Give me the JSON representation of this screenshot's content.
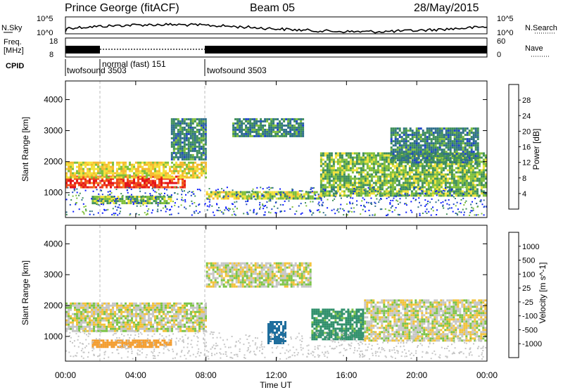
{
  "header": {
    "station": "Prince George (fitACF)",
    "beam": "Beam 05",
    "date": "28/May/2015"
  },
  "summary_panels": {
    "nsky": {
      "label": "N.Sky",
      "axis_ticks": [
        "10^5",
        "10^0"
      ]
    },
    "nsearch": {
      "label": "N.Search",
      "axis_ticks": [
        "10^5",
        "10^0"
      ]
    },
    "freq": {
      "label_lines": [
        "Freq.",
        "[MHz]"
      ],
      "ticks": [
        "18",
        "8"
      ]
    },
    "nave": {
      "label": "Nave",
      "ticks": [
        "60",
        "0"
      ]
    },
    "cpid": {
      "label": "CPID",
      "segments": [
        {
          "text": "twofsound 3503",
          "start_hour": 0.0,
          "end_hour": 1.95
        },
        {
          "text": "normal (fast) 151",
          "start_hour": 1.95,
          "end_hour": 8.0
        },
        {
          "text": "twofsound 3503",
          "start_hour": 8.0,
          "end_hour": 24.0
        }
      ]
    }
  },
  "colorbars": {
    "power": {
      "label": "Power [dB]",
      "ticks": [
        "4",
        "8",
        "12",
        "16",
        "20",
        "24",
        "28"
      ],
      "colors": [
        "#0a1aff",
        "#1f45c8",
        "#2f6f8a",
        "#3f8f5a",
        "#7fbf3a",
        "#f3e23a",
        "#f6b82e",
        "#f57f25",
        "#f04a1e",
        "#e4141a"
      ]
    },
    "velocity": {
      "label": "Velocity [m s^-1]",
      "ticks": [
        "1000",
        "500",
        "100",
        "25",
        "-25",
        "-100",
        "-500",
        "-1000"
      ],
      "colors": [
        "#1f3fb7",
        "#1f6e9d",
        "#2f8f6a",
        "#48a84f",
        "#7cc447",
        "#c6c6c6",
        "#c6c6c6",
        "#f2c23a",
        "#f39b2a",
        "#ef6a1f",
        "#e4141a"
      ]
    }
  },
  "chart_data": [
    {
      "type": "heatmap",
      "name": "power",
      "ylabel": "Slant Range [km]",
      "xlabel": "Time UT",
      "ylim": [
        200,
        4600
      ],
      "xlim_hours": [
        0,
        24
      ],
      "yticks": [
        "1000",
        "2000",
        "3000",
        "4000"
      ],
      "xticks": [
        "00:00",
        "04:00",
        "08:00",
        "12:00",
        "16:00",
        "20:00",
        "00:00"
      ],
      "regions": [
        {
          "t": [
            0.0,
            6.8
          ],
          "r": [
            1200,
            1550
          ],
          "value": 28
        },
        {
          "t": [
            0.0,
            8.0
          ],
          "r": [
            1500,
            2000
          ],
          "value": 18
        },
        {
          "t": [
            1.5,
            6.0
          ],
          "r": [
            650,
            900
          ],
          "value": 14
        },
        {
          "t": [
            6.0,
            8.0
          ],
          "r": [
            2100,
            3400
          ],
          "value": 10
        },
        {
          "t": [
            8.0,
            14.5
          ],
          "r": [
            800,
            1050
          ],
          "value": 16
        },
        {
          "t": [
            9.5,
            13.5
          ],
          "r": [
            2800,
            3400
          ],
          "value": 10
        },
        {
          "t": [
            14.5,
            24.0
          ],
          "r": [
            900,
            2300
          ],
          "value": 14
        },
        {
          "t": [
            18.5,
            23.5
          ],
          "r": [
            2000,
            3100
          ],
          "value": 10
        }
      ]
    },
    {
      "type": "heatmap",
      "name": "velocity",
      "ylabel": "Slant Range [km]",
      "xlabel": "Time UT",
      "ylim": [
        200,
        4600
      ],
      "xlim_hours": [
        0,
        24
      ],
      "yticks": [
        "1000",
        "2000",
        "3000",
        "4000"
      ],
      "xticks": [
        "00:00",
        "04:00",
        "08:00",
        "12:00",
        "16:00",
        "20:00",
        "00:00"
      ],
      "regions": [
        {
          "t": [
            0.0,
            8.0
          ],
          "r": [
            1200,
            2100
          ],
          "value": 0
        },
        {
          "t": [
            1.5,
            6.0
          ],
          "r": [
            650,
            900
          ],
          "value": -300
        },
        {
          "t": [
            8.0,
            14.0
          ],
          "r": [
            2600,
            3400
          ],
          "value": 0
        },
        {
          "t": [
            11.5,
            12.5
          ],
          "r": [
            800,
            1500
          ],
          "value": 600
        },
        {
          "t": [
            14.0,
            17.0
          ],
          "r": [
            900,
            1900
          ],
          "value": 150
        },
        {
          "t": [
            17.0,
            24.0
          ],
          "r": [
            900,
            2200
          ],
          "value": 0
        }
      ]
    }
  ]
}
